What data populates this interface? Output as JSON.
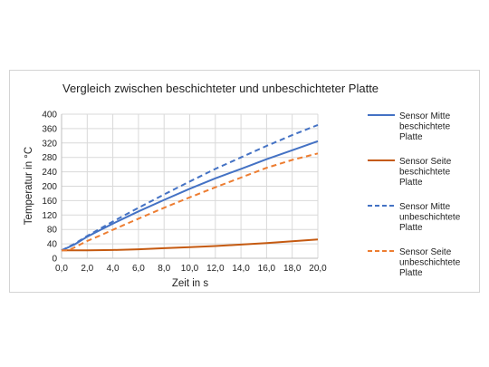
{
  "chart_data": {
    "type": "line",
    "title": "Vergleich zwischen beschichteter und unbeschichteter Platte",
    "xlabel": "Zeit in s",
    "ylabel": "Temperatur in °C",
    "xlim": [
      0,
      20
    ],
    "ylim": [
      0,
      400
    ],
    "x_ticks": [
      0,
      2,
      4,
      6,
      8,
      10,
      12,
      14,
      16,
      18,
      20
    ],
    "x_tick_labels": [
      "0,0",
      "2,0",
      "4,0",
      "6,0",
      "8,0",
      "10,0",
      "12,0",
      "14,0",
      "16,0",
      "18,0",
      "20,0"
    ],
    "y_ticks": [
      0,
      40,
      80,
      120,
      160,
      200,
      240,
      280,
      320,
      360,
      400
    ],
    "y_tick_labels": [
      "0",
      "40",
      "80",
      "120",
      "160",
      "200",
      "240",
      "280",
      "320",
      "360",
      "400"
    ],
    "grid": "both",
    "legend_position": "right",
    "series": [
      {
        "name_lines": [
          "Sensor Mitte",
          "beschichtete",
          "Platte"
        ],
        "color": "#4472C4",
        "style": "solid",
        "x": [
          0,
          1,
          2,
          3,
          4,
          6,
          8,
          10,
          12,
          14,
          16,
          18,
          20
        ],
        "y": [
          22,
          38,
          60,
          78,
          96,
          130,
          162,
          193,
          222,
          248,
          275,
          300,
          325
        ]
      },
      {
        "name_lines": [
          "Sensor Seite",
          "beschichtete",
          "Platte"
        ],
        "color": "#C55A11",
        "style": "solid",
        "x": [
          0,
          2,
          4,
          6,
          8,
          10,
          12,
          14,
          16,
          18,
          20
        ],
        "y": [
          22,
          22,
          23,
          25,
          28,
          31,
          34,
          38,
          42,
          47,
          52
        ]
      },
      {
        "name_lines": [
          "Sensor Mitte",
          "unbeschichtete",
          "Platte"
        ],
        "color": "#4472C4",
        "style": "dashed",
        "x": [
          0,
          1,
          2,
          3,
          4,
          6,
          8,
          10,
          12,
          14,
          16,
          18,
          20
        ],
        "y": [
          22,
          40,
          62,
          82,
          102,
          140,
          177,
          213,
          248,
          280,
          312,
          342,
          370
        ]
      },
      {
        "name_lines": [
          "Sensor Seite",
          "unbeschichtete",
          "Platte"
        ],
        "color": "#ED7D31",
        "style": "dashed",
        "x": [
          0,
          0.5,
          1,
          2,
          3,
          4,
          6,
          8,
          10,
          12,
          14,
          16,
          18,
          20
        ],
        "y": [
          22,
          22,
          30,
          48,
          63,
          79,
          110,
          140,
          169,
          197,
          224,
          251,
          273,
          291
        ]
      }
    ]
  }
}
